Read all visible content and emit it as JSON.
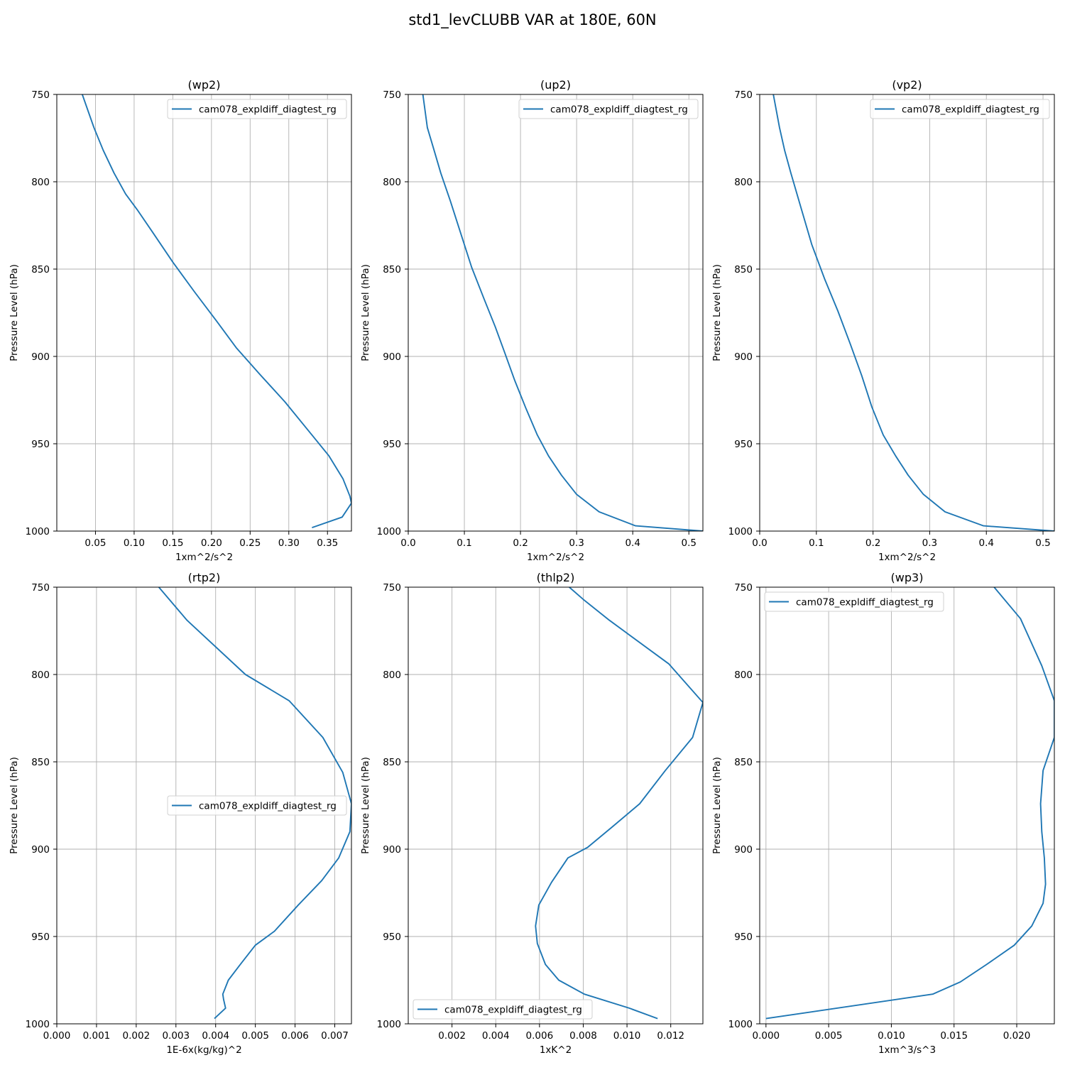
{
  "figure": {
    "title": "std1_levCLUBB VAR at 180E, 60N"
  },
  "colors": {
    "series": "#1f77b4",
    "grid": "#b0b0b0",
    "axis": "#000000"
  },
  "chart_data": [
    {
      "type": "line",
      "title": "(wp2)",
      "xlabel": "1xm^2/s^2",
      "ylabel": "Pressure Level (hPa)",
      "xlim": [
        0.0,
        0.381
      ],
      "ylim": [
        1000,
        750
      ],
      "y_inverted": true,
      "xticks": [
        0.05,
        0.1,
        0.15,
        0.2,
        0.25,
        0.3,
        0.35
      ],
      "xtick_labels": [
        "0.05",
        "0.10",
        "0.15",
        "0.20",
        "0.25",
        "0.30",
        "0.35"
      ],
      "yticks": [
        750,
        800,
        850,
        900,
        950,
        1000
      ],
      "grid": true,
      "legend": "upper right",
      "series": [
        {
          "name": "cam078_expldiff_diagtest_rg",
          "x": [
            0.033,
            0.048,
            0.06,
            0.074,
            0.089,
            0.104,
            0.124,
            0.15,
            0.178,
            0.207,
            0.232,
            0.262,
            0.295,
            0.33,
            0.352,
            0.37,
            0.379,
            0.381,
            0.369,
            0.33
          ],
          "y": [
            750,
            769,
            782,
            795,
            807,
            816,
            829,
            846,
            863,
            880,
            895,
            910,
            926,
            945,
            957,
            970,
            980,
            984,
            992,
            998
          ]
        }
      ]
    },
    {
      "type": "line",
      "title": "(up2)",
      "xlabel": "1xm^2/s^2",
      "ylabel": "Pressure Level (hPa)",
      "xlim": [
        0.0,
        0.525
      ],
      "ylim": [
        1000,
        750
      ],
      "y_inverted": true,
      "xticks": [
        0.0,
        0.1,
        0.2,
        0.3,
        0.4,
        0.5
      ],
      "xtick_labels": [
        "0.0",
        "0.1",
        "0.2",
        "0.3",
        "0.4",
        "0.5"
      ],
      "yticks": [
        750,
        800,
        850,
        900,
        950,
        1000
      ],
      "grid": true,
      "legend": "upper right",
      "series": [
        {
          "name": "cam078_expldiff_diagtest_rg",
          "x": [
            0.026,
            0.034,
            0.046,
            0.058,
            0.075,
            0.094,
            0.113,
            0.135,
            0.155,
            0.172,
            0.19,
            0.21,
            0.23,
            0.25,
            0.273,
            0.3,
            0.34,
            0.405,
            0.525
          ],
          "y": [
            750,
            769,
            782,
            795,
            811,
            830,
            849,
            867,
            883,
            898,
            914,
            930,
            945,
            957,
            968,
            979,
            989,
            997,
            1000
          ]
        }
      ]
    },
    {
      "type": "line",
      "title": "(vp2)",
      "xlabel": "1xm^2/s^2",
      "ylabel": "Pressure Level (hPa)",
      "xlim": [
        0.0,
        0.52
      ],
      "ylim": [
        1000,
        750
      ],
      "y_inverted": true,
      "xticks": [
        0.0,
        0.1,
        0.2,
        0.3,
        0.4,
        0.5
      ],
      "xtick_labels": [
        "0.0",
        "0.1",
        "0.2",
        "0.3",
        "0.4",
        "0.5"
      ],
      "yticks": [
        750,
        800,
        850,
        900,
        950,
        1000
      ],
      "grid": true,
      "legend": "upper right",
      "series": [
        {
          "name": "cam078_expldiff_diagtest_rg",
          "x": [
            0.024,
            0.035,
            0.044,
            0.055,
            0.072,
            0.092,
            0.115,
            0.138,
            0.16,
            0.18,
            0.198,
            0.218,
            0.24,
            0.262,
            0.289,
            0.327,
            0.395,
            0.52
          ],
          "y": [
            750,
            769,
            782,
            795,
            814,
            836,
            856,
            874,
            893,
            911,
            929,
            945,
            957,
            968,
            979,
            989,
            997,
            1000
          ]
        }
      ]
    },
    {
      "type": "line",
      "title": "(rtp2)",
      "xlabel": "1E-6x(kg/kg)^2",
      "ylabel": "Pressure Level (hPa)",
      "xlim": [
        0.0,
        0.00742
      ],
      "ylim": [
        1000,
        750
      ],
      "y_inverted": true,
      "xticks": [
        0.0,
        0.001,
        0.002,
        0.003,
        0.004,
        0.005,
        0.006,
        0.007
      ],
      "xtick_labels": [
        "0.000",
        "0.001",
        "0.002",
        "0.003",
        "0.004",
        "0.005",
        "0.006",
        "0.007"
      ],
      "yticks": [
        750,
        800,
        850,
        900,
        950,
        1000
      ],
      "grid": true,
      "legend": "center right",
      "series": [
        {
          "name": "cam078_expldiff_diagtest_rg",
          "x": [
            0.00257,
            0.00328,
            0.00475,
            0.00585,
            0.0067,
            0.0072,
            0.00742,
            0.00738,
            0.0071,
            0.00667,
            0.00608,
            0.00548,
            0.005,
            0.00462,
            0.00432,
            0.00418,
            0.0042,
            0.00425,
            0.00397
          ],
          "y": [
            750,
            769,
            800,
            815,
            836,
            856,
            874,
            890,
            905,
            918,
            932,
            947,
            955,
            966,
            975,
            983,
            986,
            991,
            997
          ]
        }
      ]
    },
    {
      "type": "line",
      "title": "(thlp2)",
      "xlabel": "1xK^2",
      "ylabel": "Pressure Level (hPa)",
      "xlim": [
        0.0,
        0.01347
      ],
      "ylim": [
        1000,
        750
      ],
      "y_inverted": true,
      "xticks": [
        0.002,
        0.004,
        0.006,
        0.008,
        0.01,
        0.012
      ],
      "xtick_labels": [
        "0.002",
        "0.004",
        "0.006",
        "0.008",
        "0.010",
        "0.012"
      ],
      "yticks": [
        750,
        800,
        850,
        900,
        950,
        1000
      ],
      "grid": true,
      "legend": "lower left",
      "series": [
        {
          "name": "cam078_expldiff_diagtest_rg",
          "x": [
            0.00736,
            0.008,
            0.0092,
            0.01192,
            0.01347,
            0.013,
            0.01175,
            0.01058,
            0.00935,
            0.0082,
            0.0073,
            0.00655,
            0.00597,
            0.00582,
            0.0059,
            0.00627,
            0.00688,
            0.00805,
            0.0101,
            0.0114
          ],
          "y": [
            750,
            757,
            769,
            794,
            816,
            836,
            855,
            874,
            887,
            899,
            905,
            919,
            932,
            944,
            954,
            966,
            975,
            983,
            991,
            997
          ]
        }
      ]
    },
    {
      "type": "line",
      "title": "(wp3)",
      "xlabel": "1xm^3/s^3",
      "ylabel": "Pressure Level (hPa)",
      "xlim": [
        -0.0005,
        0.023
      ],
      "ylim": [
        1000,
        750
      ],
      "y_inverted": true,
      "xticks": [
        0.0,
        0.005,
        0.01,
        0.015,
        0.02
      ],
      "xtick_labels": [
        "0.000",
        "0.005",
        "0.010",
        "0.015",
        "0.020"
      ],
      "yticks": [
        750,
        800,
        850,
        900,
        950,
        1000
      ],
      "grid": true,
      "legend": "upper left",
      "series": [
        {
          "name": "cam078_expldiff_diagtest_rg",
          "x": [
            0.0182,
            0.0203,
            0.022,
            0.023,
            0.023,
            0.0221,
            0.0219,
            0.022,
            0.0222,
            0.0223,
            0.0221,
            0.0212,
            0.0198,
            0.0176,
            0.0155,
            0.0133,
            0.0
          ],
          "y": [
            750,
            768,
            795,
            815,
            836,
            855,
            874,
            890,
            905,
            920,
            931,
            944,
            955,
            966,
            976,
            983,
            997
          ]
        }
      ]
    }
  ]
}
